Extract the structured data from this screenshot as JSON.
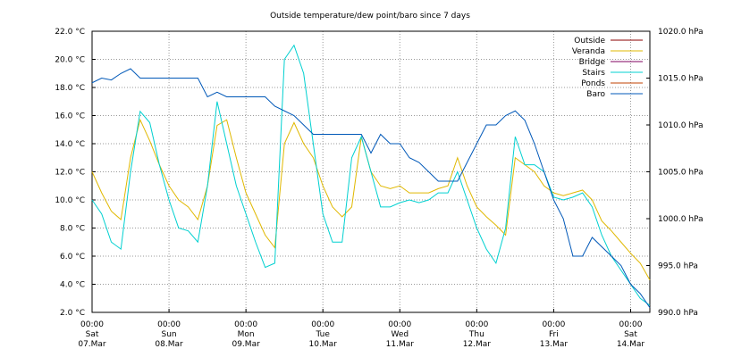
{
  "chart_data": {
    "type": "line",
    "title": "Outside temperature/dew point/baro since 7 days",
    "x": [
      0,
      0.125,
      0.25,
      0.375,
      0.5,
      0.625,
      0.75,
      0.875,
      1,
      1.125,
      1.25,
      1.375,
      1.5,
      1.625,
      1.75,
      1.875,
      2,
      2.125,
      2.25,
      2.375,
      2.5,
      2.625,
      2.75,
      2.875,
      3,
      3.125,
      3.25,
      3.375,
      3.5,
      3.625,
      3.75,
      3.875,
      4,
      4.125,
      4.25,
      4.375,
      4.5,
      4.625,
      4.75,
      4.875,
      5,
      5.125,
      5.25,
      5.375,
      5.5,
      5.625,
      5.75,
      5.875,
      6,
      6.125,
      6.25,
      6.375,
      6.5,
      6.625,
      6.75,
      6.875,
      7,
      7.125,
      7.25
    ],
    "xlim": [
      0,
      7.25
    ],
    "xticks": [
      {
        "value": 0,
        "label": [
          "00:00",
          "Sat",
          "07.Mar"
        ]
      },
      {
        "value": 1,
        "label": [
          "00:00",
          "Sun",
          "08.Mar"
        ]
      },
      {
        "value": 2,
        "label": [
          "00:00",
          "Mon",
          "09.Mar"
        ]
      },
      {
        "value": 3,
        "label": [
          "00:00",
          "Tue",
          "10.Mar"
        ]
      },
      {
        "value": 4,
        "label": [
          "00:00",
          "Wed",
          "11.Mar"
        ]
      },
      {
        "value": 5,
        "label": [
          "00:00",
          "Thu",
          "12.Mar"
        ]
      },
      {
        "value": 6,
        "label": [
          "00:00",
          "Fri",
          "13.Mar"
        ]
      },
      {
        "value": 7,
        "label": [
          "00:00",
          "Sat",
          "14.Mar"
        ]
      }
    ],
    "ylim": [
      2,
      22
    ],
    "yticks": [
      {
        "value": 2,
        "label": "2.0 °C"
      },
      {
        "value": 4,
        "label": "4.0 °C"
      },
      {
        "value": 6,
        "label": "6.0 °C"
      },
      {
        "value": 8,
        "label": "8.0 °C"
      },
      {
        "value": 10,
        "label": "10.0 °C"
      },
      {
        "value": 12,
        "label": "12.0 °C"
      },
      {
        "value": 14,
        "label": "14.0 °C"
      },
      {
        "value": 16,
        "label": "16.0 °C"
      },
      {
        "value": 18,
        "label": "18.0 °C"
      },
      {
        "value": 20,
        "label": "20.0 °C"
      },
      {
        "value": 22,
        "label": "22.0 °C"
      }
    ],
    "y2lim": [
      990,
      1020
    ],
    "y2ticks": [
      {
        "value": 990,
        "label": "990.0 hPa"
      },
      {
        "value": 995,
        "label": "995.0 hPa"
      },
      {
        "value": 1000,
        "label": "1000.0 hPa"
      },
      {
        "value": 1005,
        "label": "1005.0 hPa"
      },
      {
        "value": 1010,
        "label": "1010.0 hPa"
      },
      {
        "value": 1015,
        "label": "1015.0 hPa"
      },
      {
        "value": 1020,
        "label": "1020.0 hPa"
      }
    ],
    "grid": true,
    "legend": "top-right",
    "series": [
      {
        "name": "Outside",
        "color": "#8b0000",
        "values": [
          null,
          null,
          null,
          null,
          null,
          null,
          null,
          null,
          null,
          null,
          null,
          null,
          null,
          null,
          null,
          null,
          null,
          null,
          null,
          null,
          null,
          null,
          null,
          null,
          null,
          null,
          null,
          null,
          null,
          null,
          null,
          null,
          null,
          null,
          null,
          null,
          null,
          null,
          null,
          null,
          null,
          null,
          null,
          null,
          null,
          null,
          null,
          null,
          null,
          null,
          null,
          null,
          null,
          null,
          null,
          null,
          null,
          null,
          null
        ]
      },
      {
        "name": "Veranda",
        "color": "#e0b800",
        "values": [
          12,
          10.5,
          9.2,
          8.6,
          13,
          15.7,
          14.2,
          12.5,
          11,
          10,
          9.5,
          8.6,
          11,
          15.3,
          15.7,
          13,
          10.5,
          9,
          7.5,
          6.6,
          14,
          15.5,
          14,
          13,
          11,
          9.5,
          8.8,
          9.5,
          14.5,
          12,
          11,
          10.8,
          11,
          10.5,
          10.5,
          10.5,
          10.8,
          11,
          13,
          11,
          9.5,
          8.8,
          8.2,
          7.5,
          13,
          12.5,
          12,
          11,
          10.5,
          10.3,
          10.5,
          10.7,
          10,
          8.5,
          7.8,
          7,
          6.2,
          5.5,
          4.3
        ]
      },
      {
        "name": "Bridge",
        "color": "#800060",
        "values": [
          null,
          null,
          null,
          null,
          null,
          null,
          null,
          null,
          null,
          null,
          null,
          null,
          null,
          null,
          null,
          null,
          null,
          null,
          null,
          null,
          null,
          null,
          null,
          null,
          null,
          null,
          null,
          null,
          null,
          null,
          null,
          null,
          null,
          null,
          null,
          null,
          null,
          null,
          null,
          null,
          null,
          null,
          null,
          null,
          null,
          null,
          null,
          null,
          null,
          null,
          null,
          null,
          null,
          null,
          null,
          null,
          null,
          null,
          null
        ]
      },
      {
        "name": "Stairs",
        "color": "#00d0d0",
        "values": [
          10,
          9,
          7,
          6.5,
          12,
          16.3,
          15.5,
          12.5,
          10,
          8,
          7.8,
          7,
          11,
          17,
          14,
          11,
          9,
          7,
          5.2,
          5.5,
          20,
          21,
          19,
          14,
          9,
          7,
          7,
          13,
          14.5,
          12,
          9.5,
          9.5,
          9.8,
          10,
          9.8,
          10,
          10.5,
          10.5,
          12,
          10,
          8,
          6.5,
          5.5,
          8,
          14.5,
          12.5,
          12.5,
          12,
          10.2,
          10,
          10.2,
          10.5,
          9.5,
          7.5,
          6,
          5,
          4,
          3,
          2.5
        ]
      },
      {
        "name": "Ponds",
        "color": "#c04000",
        "values": [
          null,
          null,
          null,
          null,
          null,
          null,
          null,
          null,
          null,
          null,
          null,
          null,
          null,
          null,
          null,
          null,
          null,
          null,
          null,
          null,
          null,
          null,
          null,
          null,
          null,
          null,
          null,
          null,
          null,
          null,
          null,
          null,
          null,
          null,
          null,
          null,
          null,
          null,
          null,
          null,
          null,
          null,
          null,
          null,
          null,
          null,
          null,
          null,
          null,
          null,
          null,
          null,
          null,
          null,
          null,
          null,
          null,
          null,
          null
        ]
      },
      {
        "name": "Baro",
        "color": "#0058b8",
        "axis": "y2",
        "values": [
          1014.5,
          1015,
          1014.8,
          1015.5,
          1016,
          1015,
          1015,
          1015,
          1015,
          1015,
          1015,
          1015,
          1013,
          1013.5,
          1013,
          1013,
          1013,
          1013,
          1013,
          1012,
          1011.5,
          1011,
          1010,
          1009,
          1009,
          1009,
          1009,
          1009,
          1009,
          1007,
          1009,
          1008,
          1008,
          1006.5,
          1006,
          1005,
          1004,
          1004,
          1004,
          1006,
          1008,
          1010,
          1010,
          1011,
          1011.5,
          1010.5,
          1008,
          1005,
          1002,
          1000,
          996,
          996,
          998,
          997,
          996,
          995,
          993,
          992,
          990.5
        ]
      }
    ]
  }
}
